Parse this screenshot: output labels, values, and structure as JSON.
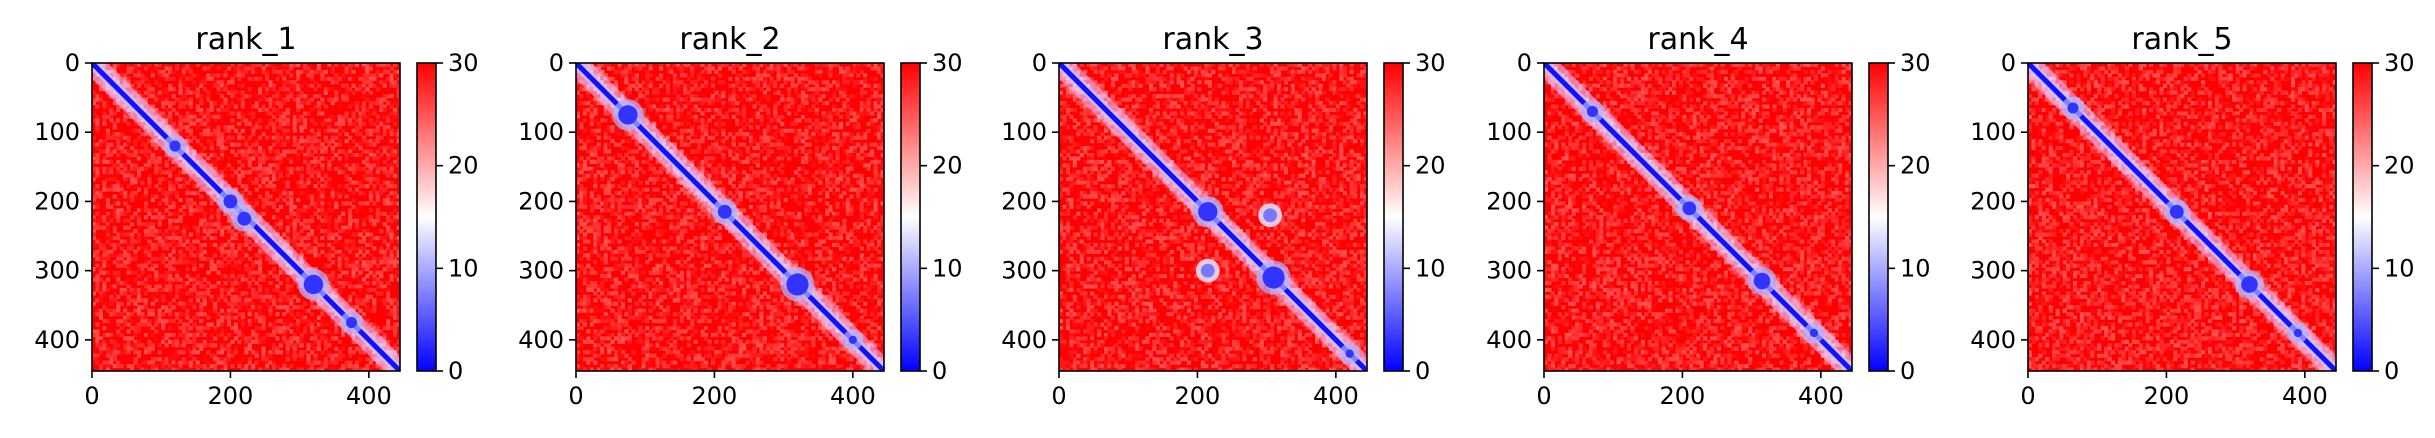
{
  "colormap": {
    "low": "#0000ff",
    "mid": "#ffffff",
    "high": "#ff0000"
  },
  "chart_data": [
    {
      "type": "heatmap",
      "title": "rank_1",
      "xlabel": "",
      "ylabel": "",
      "xlim": [
        0,
        445
      ],
      "ylim": [
        445,
        0
      ],
      "clim": [
        0,
        30
      ],
      "x_ticks": [
        0,
        200,
        400
      ],
      "y_ticks": [
        0,
        100,
        200,
        300,
        400
      ],
      "colorbar_ticks": [
        0,
        10,
        20,
        30
      ],
      "low_value_blobs": [
        [
          120,
          120,
          8
        ],
        [
          200,
          200,
          10
        ],
        [
          220,
          225,
          10
        ],
        [
          320,
          320,
          14
        ],
        [
          375,
          375,
          8
        ]
      ],
      "off_diagonal_blobs": []
    },
    {
      "type": "heatmap",
      "title": "rank_2",
      "xlabel": "",
      "ylabel": "",
      "xlim": [
        0,
        445
      ],
      "ylim": [
        445,
        0
      ],
      "clim": [
        0,
        30
      ],
      "x_ticks": [
        0,
        200,
        400
      ],
      "y_ticks": [
        0,
        100,
        200,
        300,
        400
      ],
      "colorbar_ticks": [
        0,
        10,
        20,
        30
      ],
      "low_value_blobs": [
        [
          75,
          75,
          14
        ],
        [
          215,
          215,
          10
        ],
        [
          320,
          320,
          16
        ],
        [
          400,
          400,
          6
        ]
      ],
      "off_diagonal_blobs": []
    },
    {
      "type": "heatmap",
      "title": "rank_3",
      "xlabel": "",
      "ylabel": "",
      "xlim": [
        0,
        445
      ],
      "ylim": [
        445,
        0
      ],
      "clim": [
        0,
        30
      ],
      "x_ticks": [
        0,
        200,
        400
      ],
      "y_ticks": [
        0,
        100,
        200,
        300,
        400
      ],
      "colorbar_ticks": [
        0,
        10,
        20,
        30
      ],
      "low_value_blobs": [
        [
          215,
          215,
          14
        ],
        [
          310,
          310,
          16
        ],
        [
          420,
          420,
          6
        ]
      ],
      "off_diagonal_blobs": [
        [
          305,
          220,
          10
        ],
        [
          215,
          300,
          10
        ]
      ]
    },
    {
      "type": "heatmap",
      "title": "rank_4",
      "xlabel": "",
      "ylabel": "",
      "xlim": [
        0,
        445
      ],
      "ylim": [
        445,
        0
      ],
      "clim": [
        0,
        30
      ],
      "x_ticks": [
        0,
        200,
        400
      ],
      "y_ticks": [
        0,
        100,
        200,
        300,
        400
      ],
      "colorbar_ticks": [
        0,
        10,
        20,
        30
      ],
      "low_value_blobs": [
        [
          70,
          70,
          8
        ],
        [
          210,
          210,
          10
        ],
        [
          315,
          315,
          12
        ],
        [
          390,
          390,
          6
        ]
      ],
      "off_diagonal_blobs": []
    },
    {
      "type": "heatmap",
      "title": "rank_5",
      "xlabel": "",
      "ylabel": "",
      "xlim": [
        0,
        445
      ],
      "ylim": [
        445,
        0
      ],
      "clim": [
        0,
        30
      ],
      "x_ticks": [
        0,
        200,
        400
      ],
      "y_ticks": [
        0,
        100,
        200,
        300,
        400
      ],
      "colorbar_ticks": [
        0,
        10,
        20,
        30
      ],
      "low_value_blobs": [
        [
          65,
          65,
          8
        ],
        [
          215,
          215,
          10
        ],
        [
          320,
          320,
          12
        ],
        [
          390,
          390,
          6
        ]
      ],
      "off_diagonal_blobs": []
    }
  ]
}
